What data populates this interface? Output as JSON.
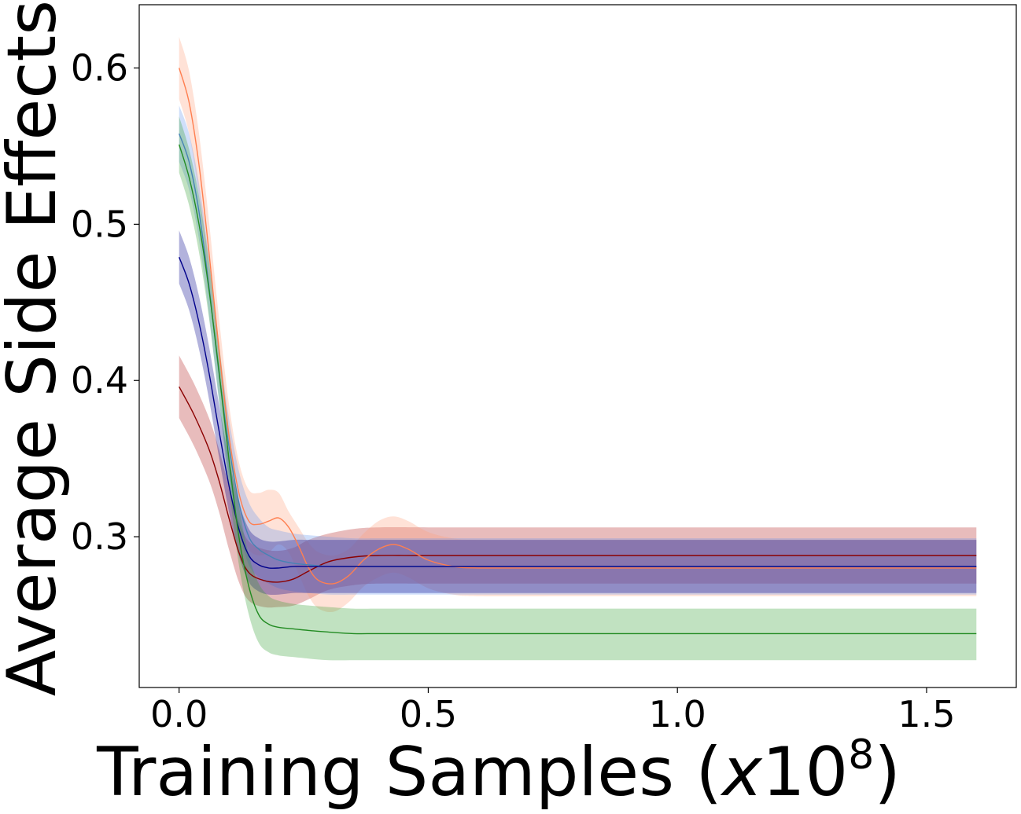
{
  "chart_data": {
    "type": "line",
    "title": "",
    "xlabel": "Training Samples (",
    "xlabel_var": "x",
    "xlabel_num": "10",
    "xlabel_exp": "8",
    "xlabel_close": ")",
    "ylabel": "Average Side Effects",
    "xlim": [
      -0.08,
      1.68
    ],
    "ylim": [
      0.2035,
      0.6405
    ],
    "xticks": [
      0.0,
      0.5,
      1.0,
      1.5
    ],
    "xtick_labels": [
      "0.0",
      "0.5",
      "1.0",
      "1.5"
    ],
    "yticks": [
      0.3,
      0.4,
      0.5,
      0.6
    ],
    "ytick_labels": [
      "0.3",
      "0.4",
      "0.5",
      "0.6"
    ],
    "grid": false,
    "series": [
      {
        "color": "#8b0000",
        "fill": "#b22222",
        "x": [
          0.0,
          0.03,
          0.06,
          0.08,
          0.1,
          0.12,
          0.14,
          0.17,
          0.2,
          0.23,
          0.26,
          0.3,
          0.35,
          0.4,
          0.5,
          0.7,
          1.0,
          1.3,
          1.6
        ],
        "mean": [
          0.396,
          0.378,
          0.356,
          0.336,
          0.312,
          0.29,
          0.277,
          0.272,
          0.271,
          0.273,
          0.278,
          0.284,
          0.287,
          0.288,
          0.288,
          0.288,
          0.288,
          0.288,
          0.288
        ],
        "upper": [
          0.416,
          0.398,
          0.376,
          0.356,
          0.332,
          0.31,
          0.297,
          0.292,
          0.291,
          0.293,
          0.298,
          0.302,
          0.305,
          0.306,
          0.306,
          0.306,
          0.306,
          0.306,
          0.306
        ],
        "lower": [
          0.376,
          0.358,
          0.336,
          0.316,
          0.292,
          0.271,
          0.259,
          0.255,
          0.255,
          0.256,
          0.26,
          0.266,
          0.269,
          0.27,
          0.27,
          0.27,
          0.27,
          0.27,
          0.27
        ]
      },
      {
        "color": "#ff7f50",
        "fill": "#ffa07a",
        "x": [
          0.0,
          0.02,
          0.04,
          0.06,
          0.08,
          0.1,
          0.12,
          0.14,
          0.16,
          0.18,
          0.2,
          0.22,
          0.24,
          0.26,
          0.28,
          0.31,
          0.34,
          0.37,
          0.4,
          0.43,
          0.46,
          0.5,
          0.55,
          0.6,
          0.8,
          1.0,
          1.3,
          1.6
        ],
        "mean": [
          0.6,
          0.578,
          0.538,
          0.482,
          0.42,
          0.365,
          0.328,
          0.31,
          0.308,
          0.31,
          0.312,
          0.306,
          0.294,
          0.28,
          0.272,
          0.27,
          0.275,
          0.285,
          0.292,
          0.295,
          0.292,
          0.285,
          0.281,
          0.28,
          0.28,
          0.28,
          0.28,
          0.28
        ],
        "upper": [
          0.62,
          0.598,
          0.558,
          0.502,
          0.44,
          0.385,
          0.348,
          0.33,
          0.328,
          0.33,
          0.328,
          0.316,
          0.306,
          0.296,
          0.29,
          0.288,
          0.292,
          0.302,
          0.31,
          0.313,
          0.31,
          0.303,
          0.299,
          0.298,
          0.298,
          0.298,
          0.298,
          0.298
        ],
        "lower": [
          0.58,
          0.558,
          0.518,
          0.462,
          0.4,
          0.345,
          0.308,
          0.292,
          0.288,
          0.29,
          0.295,
          0.29,
          0.276,
          0.262,
          0.254,
          0.252,
          0.258,
          0.268,
          0.274,
          0.277,
          0.274,
          0.267,
          0.263,
          0.262,
          0.262,
          0.262,
          0.262,
          0.262
        ]
      },
      {
        "color": "#4682b4",
        "fill": "#6495ed",
        "x": [
          0.0,
          0.02,
          0.04,
          0.06,
          0.08,
          0.1,
          0.12,
          0.14,
          0.16,
          0.18,
          0.2,
          0.23,
          0.26,
          0.3,
          0.35,
          0.4,
          0.5,
          0.7,
          1.0,
          1.3,
          1.6
        ],
        "mean": [
          0.558,
          0.54,
          0.508,
          0.46,
          0.405,
          0.358,
          0.322,
          0.3,
          0.292,
          0.288,
          0.285,
          0.283,
          0.282,
          0.281,
          0.281,
          0.281,
          0.281,
          0.281,
          0.281,
          0.281,
          0.281
        ],
        "upper": [
          0.576,
          0.558,
          0.526,
          0.478,
          0.423,
          0.376,
          0.342,
          0.322,
          0.312,
          0.306,
          0.304,
          0.302,
          0.301,
          0.3,
          0.299,
          0.299,
          0.299,
          0.299,
          0.299,
          0.299,
          0.299
        ],
        "lower": [
          0.54,
          0.522,
          0.49,
          0.442,
          0.387,
          0.34,
          0.304,
          0.282,
          0.274,
          0.27,
          0.267,
          0.265,
          0.264,
          0.263,
          0.263,
          0.263,
          0.263,
          0.263,
          0.263,
          0.263,
          0.263
        ]
      },
      {
        "color": "#00008b",
        "fill": "#00008b",
        "x": [
          0.0,
          0.02,
          0.04,
          0.06,
          0.08,
          0.1,
          0.12,
          0.14,
          0.16,
          0.18,
          0.2,
          0.23,
          0.26,
          0.3,
          0.4,
          0.6,
          1.0,
          1.3,
          1.6
        ],
        "mean": [
          0.479,
          0.462,
          0.437,
          0.405,
          0.368,
          0.333,
          0.305,
          0.288,
          0.282,
          0.28,
          0.28,
          0.281,
          0.281,
          0.281,
          0.281,
          0.281,
          0.281,
          0.281,
          0.281
        ],
        "upper": [
          0.496,
          0.479,
          0.454,
          0.422,
          0.385,
          0.35,
          0.322,
          0.305,
          0.299,
          0.297,
          0.297,
          0.298,
          0.298,
          0.298,
          0.298,
          0.298,
          0.298,
          0.298,
          0.298
        ],
        "lower": [
          0.462,
          0.445,
          0.42,
          0.388,
          0.351,
          0.316,
          0.288,
          0.271,
          0.265,
          0.263,
          0.263,
          0.264,
          0.264,
          0.264,
          0.264,
          0.264,
          0.264,
          0.264,
          0.264
        ]
      },
      {
        "color": "#228b22",
        "fill": "#32a032",
        "x": [
          0.0,
          0.02,
          0.04,
          0.06,
          0.08,
          0.1,
          0.12,
          0.14,
          0.16,
          0.18,
          0.2,
          0.23,
          0.26,
          0.3,
          0.35,
          0.4,
          0.5,
          0.7,
          1.0,
          1.3,
          1.6
        ],
        "mean": [
          0.551,
          0.53,
          0.5,
          0.458,
          0.406,
          0.35,
          0.3,
          0.268,
          0.25,
          0.244,
          0.242,
          0.241,
          0.24,
          0.239,
          0.238,
          0.238,
          0.238,
          0.238,
          0.238,
          0.238,
          0.238
        ],
        "upper": [
          0.569,
          0.548,
          0.518,
          0.476,
          0.424,
          0.368,
          0.32,
          0.288,
          0.27,
          0.262,
          0.259,
          0.257,
          0.256,
          0.255,
          0.254,
          0.254,
          0.254,
          0.254,
          0.254,
          0.254,
          0.254
        ],
        "lower": [
          0.533,
          0.512,
          0.482,
          0.44,
          0.388,
          0.332,
          0.282,
          0.25,
          0.232,
          0.226,
          0.224,
          0.223,
          0.222,
          0.221,
          0.221,
          0.221,
          0.221,
          0.221,
          0.221,
          0.221,
          0.221
        ]
      }
    ]
  }
}
